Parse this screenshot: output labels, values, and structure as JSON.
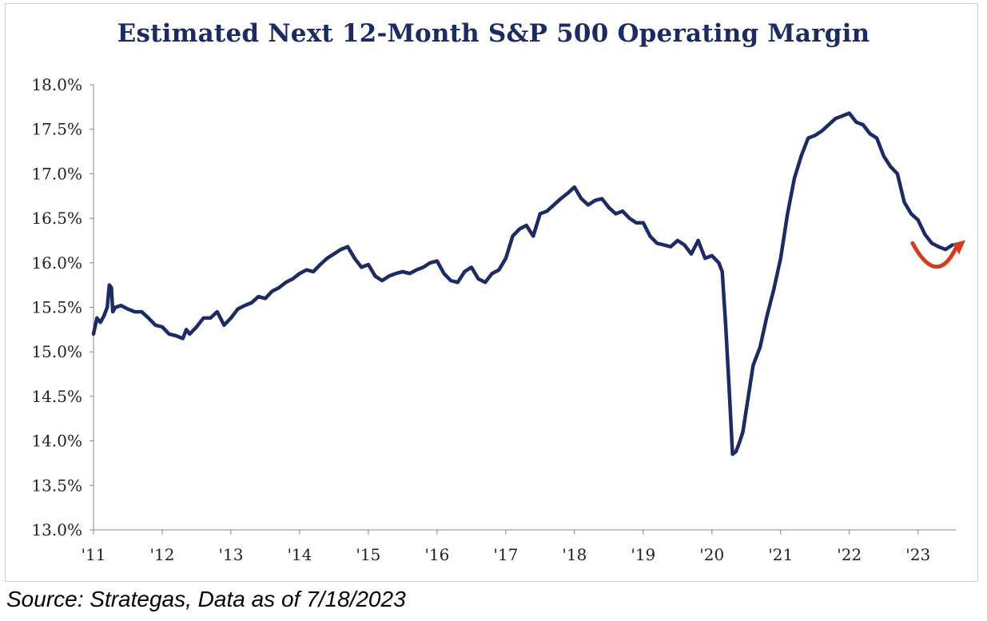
{
  "chart_data": {
    "type": "line",
    "title": "Estimated Next 12-Month S&P 500 Operating Margin",
    "xlabel": "",
    "ylabel": "",
    "x_ticks": [
      "'11",
      "'12",
      "'13",
      "'14",
      "'15",
      "'16",
      "'17",
      "'18",
      "'19",
      "'20",
      "'21",
      "'22",
      "'23"
    ],
    "y_ticks": [
      "18.0%",
      "17.5%",
      "17.0%",
      "16.5%",
      "16.0%",
      "15.5%",
      "15.0%",
      "14.5%",
      "14.0%",
      "13.5%",
      "13.0%"
    ],
    "ylim": [
      13.0,
      18.0
    ],
    "xlim": [
      2011.0,
      2023.55
    ],
    "grid": false,
    "legend": "none",
    "line_color": "#1d2b63",
    "annotation_color": "#d63a1e",
    "series": [
      {
        "x": [
          2011.0,
          2011.05,
          2011.1,
          2011.15,
          2011.2,
          2011.23,
          2011.26,
          2011.28,
          2011.32,
          2011.4,
          2011.5,
          2011.6,
          2011.7,
          2011.8,
          2011.9,
          2012.0,
          2012.1,
          2012.2,
          2012.3,
          2012.35,
          2012.4,
          2012.5,
          2012.6,
          2012.7,
          2012.8,
          2012.9,
          2013.0,
          2013.1,
          2013.2,
          2013.3,
          2013.4,
          2013.5,
          2013.6,
          2013.7,
          2013.8,
          2013.9,
          2014.0,
          2014.1,
          2014.2,
          2014.3,
          2014.4,
          2014.5,
          2014.6,
          2014.7,
          2014.8,
          2014.9,
          2015.0,
          2015.1,
          2015.2,
          2015.3,
          2015.4,
          2015.5,
          2015.6,
          2015.7,
          2015.8,
          2015.9,
          2016.0,
          2016.1,
          2016.2,
          2016.3,
          2016.4,
          2016.5,
          2016.6,
          2016.7,
          2016.8,
          2016.9,
          2017.0,
          2017.1,
          2017.2,
          2017.3,
          2017.4,
          2017.5,
          2017.6,
          2017.7,
          2017.8,
          2017.9,
          2018.0,
          2018.1,
          2018.2,
          2018.3,
          2018.4,
          2018.5,
          2018.6,
          2018.7,
          2018.8,
          2018.9,
          2019.0,
          2019.1,
          2019.2,
          2019.3,
          2019.4,
          2019.5,
          2019.6,
          2019.7,
          2019.8,
          2019.9,
          2020.0,
          2020.1,
          2020.15,
          2020.2,
          2020.25,
          2020.3,
          2020.35,
          2020.4,
          2020.45,
          2020.5,
          2020.6,
          2020.7,
          2020.8,
          2020.9,
          2021.0,
          2021.1,
          2021.2,
          2021.3,
          2021.4,
          2021.5,
          2021.6,
          2021.7,
          2021.8,
          2021.9,
          2022.0,
          2022.1,
          2022.2,
          2022.3,
          2022.4,
          2022.5,
          2022.6,
          2022.7,
          2022.8,
          2022.9,
          2023.0,
          2023.1,
          2023.2,
          2023.3,
          2023.4,
          2023.5
        ],
        "y": [
          15.2,
          15.38,
          15.33,
          15.4,
          15.5,
          15.75,
          15.72,
          15.45,
          15.5,
          15.52,
          15.48,
          15.45,
          15.45,
          15.38,
          15.3,
          15.28,
          15.2,
          15.18,
          15.15,
          15.25,
          15.2,
          15.28,
          15.38,
          15.38,
          15.45,
          15.3,
          15.38,
          15.48,
          15.52,
          15.55,
          15.62,
          15.6,
          15.68,
          15.72,
          15.78,
          15.82,
          15.88,
          15.92,
          15.9,
          15.98,
          16.05,
          16.1,
          16.15,
          16.18,
          16.05,
          15.95,
          15.98,
          15.85,
          15.8,
          15.85,
          15.88,
          15.9,
          15.88,
          15.92,
          15.95,
          16.0,
          16.02,
          15.88,
          15.8,
          15.78,
          15.9,
          15.95,
          15.82,
          15.78,
          15.88,
          15.92,
          16.05,
          16.3,
          16.38,
          16.42,
          16.3,
          16.55,
          16.58,
          16.65,
          16.72,
          16.78,
          16.85,
          16.72,
          16.65,
          16.7,
          16.72,
          16.62,
          16.55,
          16.58,
          16.5,
          16.45,
          16.45,
          16.3,
          16.22,
          16.2,
          16.18,
          16.25,
          16.2,
          16.1,
          16.25,
          16.05,
          16.08,
          16.0,
          15.9,
          15.3,
          14.6,
          13.85,
          13.88,
          13.98,
          14.1,
          14.35,
          14.85,
          15.05,
          15.4,
          15.7,
          16.05,
          16.55,
          16.95,
          17.2,
          17.4,
          17.43,
          17.48,
          17.55,
          17.62,
          17.65,
          17.68,
          17.58,
          17.55,
          17.45,
          17.4,
          17.2,
          17.08,
          17.0,
          16.68,
          16.55,
          16.48,
          16.32,
          16.22,
          16.18,
          16.15,
          16.2
        ]
      }
    ]
  },
  "source": "Source: Strategas, Data as of 7/18/2023"
}
